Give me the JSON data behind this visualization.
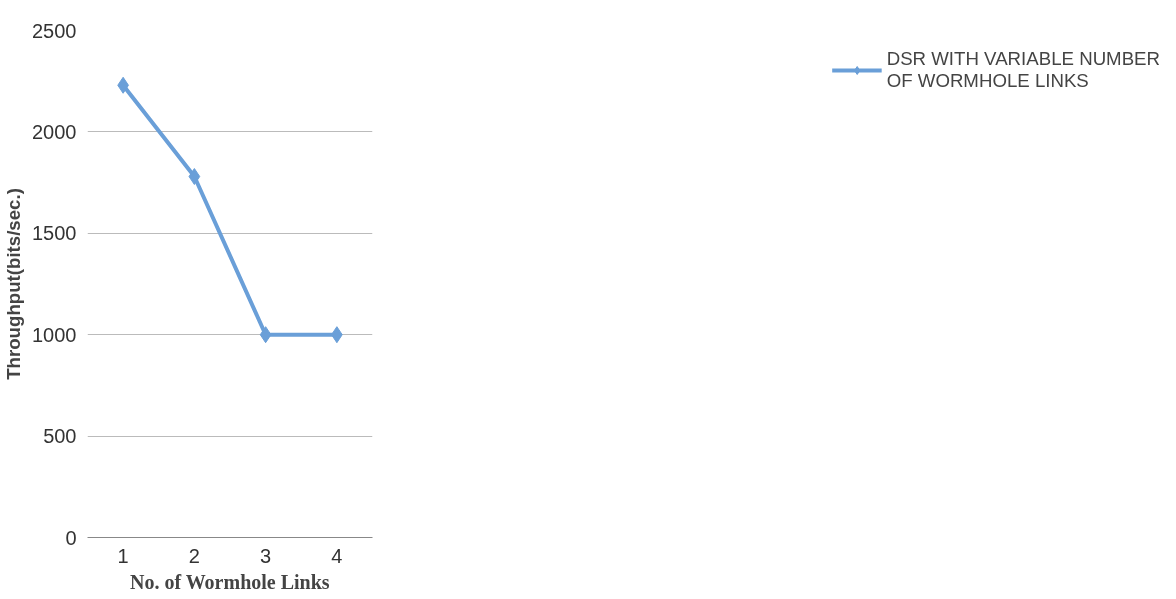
{
  "chart_data": {
    "type": "line",
    "xlabel": "No. of Wormhole Links",
    "ylabel": "Throughput(bits/sec.)",
    "categories": [
      "1",
      "2",
      "3",
      "4"
    ],
    "series": [
      {
        "name": "DSR WITH VARIABLE NUMBER OF WORMHOLE LINKS",
        "color": "#6a9fd8",
        "values": [
          2230,
          1780,
          1000,
          1000
        ]
      }
    ],
    "ylim": [
      0,
      2500
    ],
    "yticks": [
      0,
      500,
      1000,
      1500,
      2000,
      2500
    ],
    "grid": "y",
    "legend": "right",
    "marker": "diamond",
    "line_style": "solid"
  }
}
